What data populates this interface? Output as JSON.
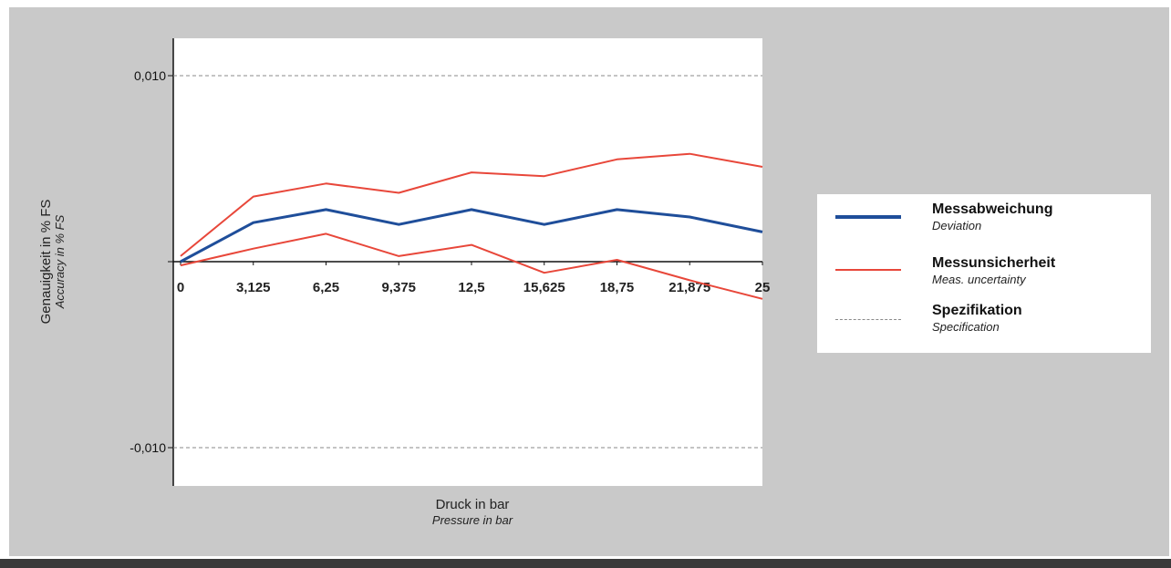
{
  "chart_data": {
    "type": "line",
    "x": [
      0,
      3.125,
      6.25,
      9.375,
      12.5,
      15.625,
      18.75,
      21.875,
      25
    ],
    "x_tick_labels": [
      "0",
      "3,125",
      "6,25",
      "9,375",
      "12,5",
      "15,625",
      "18,75",
      "21,875",
      "25"
    ],
    "y_tick_labels": [
      "0,010",
      "-0,010"
    ],
    "y_ticks": [
      0.01,
      -0.01
    ],
    "ylim": [
      -0.012,
      0.012
    ],
    "xlim": [
      0,
      25
    ],
    "xlabel": "Druck in bar",
    "xlabel_en": "Pressure in bar",
    "ylabel": "Genauigkeit in % FS",
    "ylabel_en": "Accuracy in % FS",
    "grid": false,
    "legend_placement": "right",
    "series": [
      {
        "name": "Messabweichung",
        "name_en": "Deviation",
        "color": "#1f4e9a",
        "style": "solid",
        "values": [
          0.0,
          0.0021,
          0.0028,
          0.002,
          0.0028,
          0.002,
          0.0028,
          0.0024,
          0.0016
        ]
      },
      {
        "name": "Messunsicherheit",
        "name_en": "Meas. uncertainty",
        "color": "#e8473a",
        "style": "solid",
        "band": true,
        "upper": [
          0.0003,
          0.0035,
          0.0042,
          0.0037,
          0.0048,
          0.0046,
          0.0055,
          0.0058,
          0.0051
        ],
        "lower": [
          -0.0002,
          0.0007,
          0.0015,
          0.0003,
          0.0009,
          -0.0006,
          0.0001,
          -0.001,
          -0.002
        ]
      },
      {
        "name": "Spezifikation",
        "name_en": "Specification",
        "color": "#8a8a8a",
        "style": "dashed",
        "values_upper": 0.01,
        "values_lower": -0.01
      }
    ]
  }
}
